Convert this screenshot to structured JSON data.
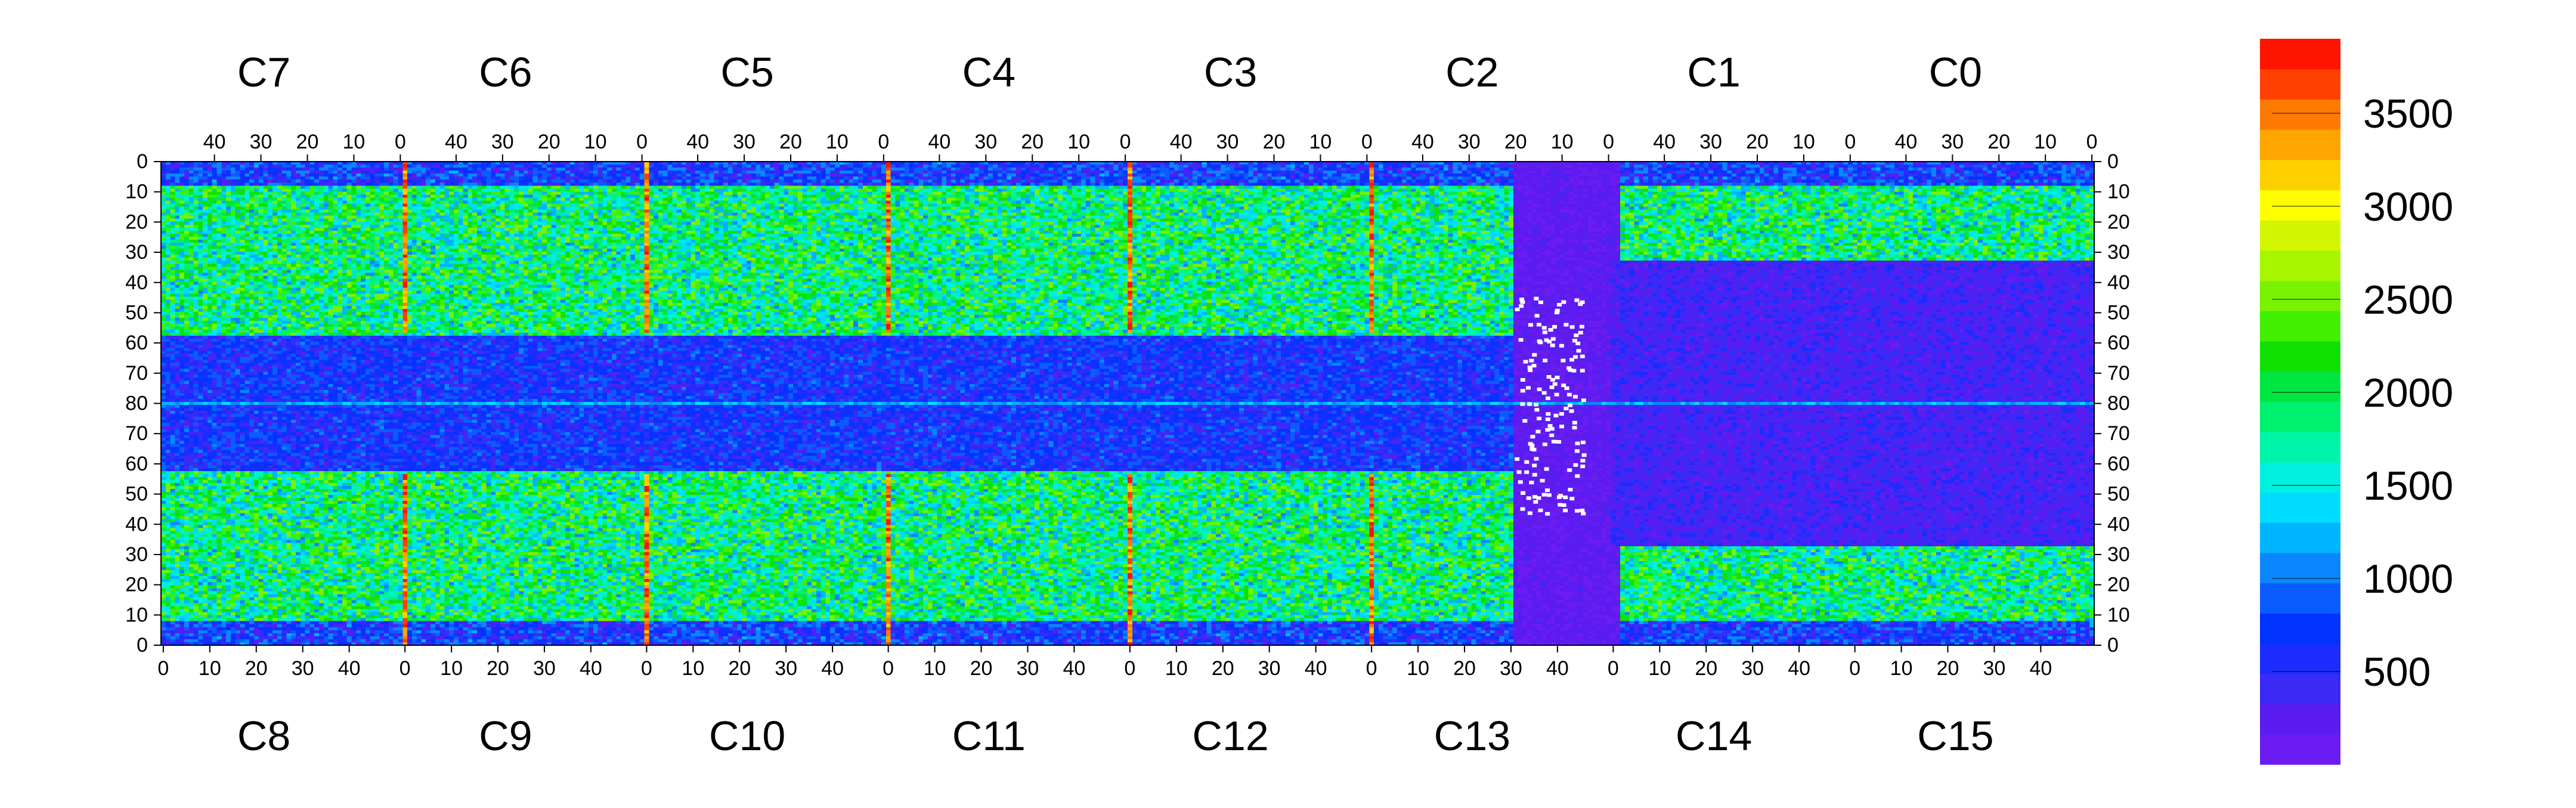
{
  "chart_data": {
    "type": "heatmap",
    "title": "",
    "xlabel": "",
    "ylabel": "",
    "top_chip_labels": [
      "C7",
      "C6",
      "C5",
      "C4",
      "C3",
      "C2",
      "C1",
      "C0"
    ],
    "bottom_chip_labels": [
      "C8",
      "C9",
      "C10",
      "C11",
      "C12",
      "C13",
      "C14",
      "C15"
    ],
    "top_tick_labels": [
      "40",
      "30",
      "20",
      "10",
      "0"
    ],
    "bottom_tick_labels": [
      "0",
      "10",
      "20",
      "30",
      "40"
    ],
    "y_tick_labels_top_half": [
      "0",
      "10",
      "20",
      "30",
      "40",
      "50",
      "60",
      "70",
      "80"
    ],
    "y_tick_labels_bottom_half": [
      "70",
      "60",
      "50",
      "40",
      "30",
      "20",
      "10",
      "0"
    ],
    "columns_per_chip": 52,
    "rows_per_chip": 80,
    "colorbar": {
      "range": [
        0,
        3900
      ],
      "tick_labels": [
        "500",
        "1000",
        "1500",
        "2000",
        "2500",
        "3000",
        "3500"
      ],
      "tick_values": [
        500,
        1000,
        1500,
        2000,
        2500,
        3000,
        3500
      ],
      "colors": [
        "#6b1cf0",
        "#5a1cf0",
        "#3b2af5",
        "#1c2cff",
        "#0033ff",
        "#0a5cff",
        "#0a86ff",
        "#00b4ff",
        "#00dcff",
        "#00f0e0",
        "#00f5a8",
        "#00f070",
        "#00e640",
        "#10e000",
        "#40f000",
        "#78f200",
        "#a8f500",
        "#d2f500",
        "#ffff00",
        "#ffd000",
        "#ffa500",
        "#ff7a00",
        "#ff4000",
        "#ff1400"
      ]
    }
  }
}
